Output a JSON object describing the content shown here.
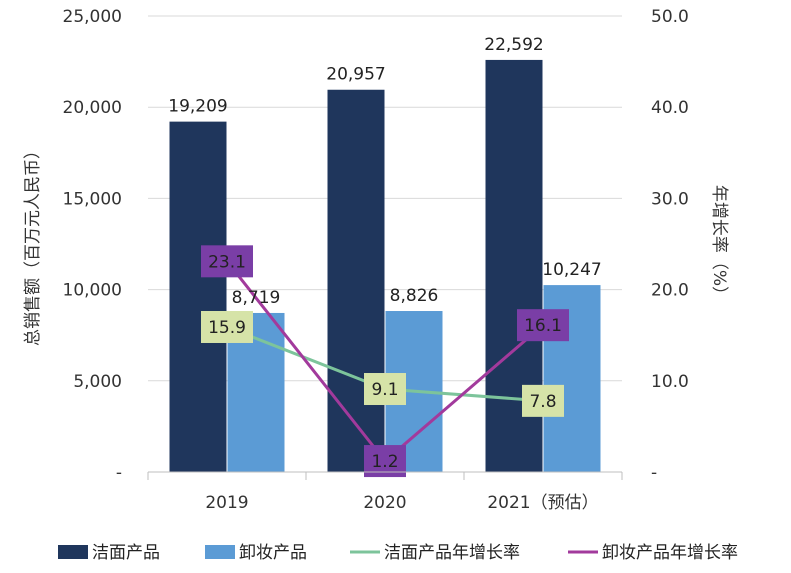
{
  "chart_data": {
    "type": "bar",
    "categories": [
      "2019",
      "2020",
      "2021（预估）"
    ],
    "ylabel": "总销售额（百万元人民币）",
    "y2label": "年增长率（%）",
    "ylim": [
      0,
      25000
    ],
    "y2lim": [
      0,
      50
    ],
    "yticks": [
      "-",
      "5,000",
      "10,000",
      "15,000",
      "20,000",
      "25,000"
    ],
    "y2ticks": [
      "-",
      "10.0",
      "20.0",
      "30.0",
      "40.0",
      "50.0"
    ],
    "grid": true,
    "legend_position": "bottom",
    "series": [
      {
        "name": "洁面产品",
        "kind": "bar",
        "axis": "left",
        "color": "#1f365c",
        "values": [
          19209,
          20957,
          22592
        ],
        "labels": [
          "19,209",
          "20,957",
          "22,592"
        ]
      },
      {
        "name": "卸妆产品",
        "kind": "bar",
        "axis": "left",
        "color": "#5b9bd5",
        "values": [
          8719,
          8826,
          10247
        ],
        "labels": [
          "8,719",
          "8,826",
          "10,247"
        ]
      },
      {
        "name": "洁面产品年增长率",
        "kind": "line",
        "axis": "right",
        "color": "#7dc49b",
        "label_bg": "#d6e3a8",
        "label_color": "#222222",
        "values": [
          15.9,
          9.1,
          7.8
        ],
        "labels": [
          "15.9",
          "9.1",
          "7.8"
        ]
      },
      {
        "name": "卸妆产品年增长率",
        "kind": "line",
        "axis": "right",
        "color": "#a23a9c",
        "label_bg": "#7a3ea6",
        "label_color": "#ffffff",
        "values": [
          23.1,
          1.2,
          16.1
        ],
        "labels": [
          "23.1",
          "1.2",
          "16.1"
        ]
      }
    ]
  }
}
